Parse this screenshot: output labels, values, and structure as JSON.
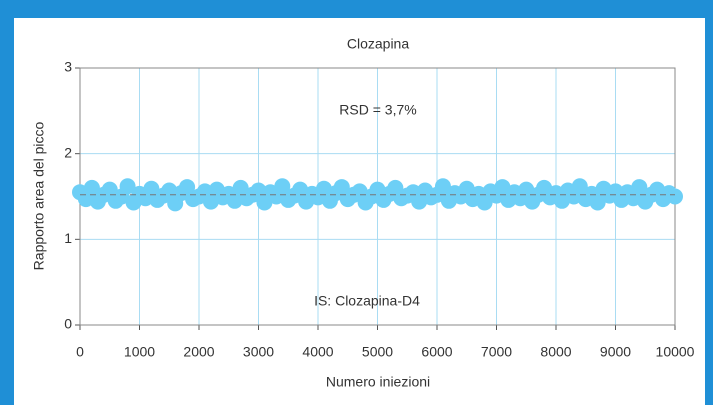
{
  "chart_data": {
    "type": "scatter",
    "title": "Clozapina",
    "xlabel": "Numero iniezioni",
    "ylabel": "Rapporto area del picco",
    "annotations": [
      "RSD = 3,7%",
      "IS: Clozapina-D4"
    ],
    "reference_line": 1.52,
    "color": "#6dcff6",
    "xlim": [
      0,
      10000
    ],
    "xticks": [
      0,
      1000,
      2000,
      3000,
      4000,
      5000,
      6000,
      7000,
      8000,
      9000,
      10000
    ],
    "ylim": [
      0,
      3
    ],
    "yticks": [
      0,
      1,
      2,
      3
    ],
    "grid": true,
    "x": [
      0,
      100,
      200,
      300,
      400,
      500,
      600,
      700,
      800,
      900,
      1000,
      1100,
      1200,
      1300,
      1400,
      1500,
      1600,
      1700,
      1800,
      1900,
      2000,
      2100,
      2200,
      2300,
      2400,
      2500,
      2600,
      2700,
      2800,
      2900,
      3000,
      3100,
      3200,
      3300,
      3400,
      3500,
      3600,
      3700,
      3800,
      3900,
      4000,
      4100,
      4200,
      4300,
      4400,
      4500,
      4600,
      4700,
      4800,
      4900,
      5000,
      5100,
      5200,
      5300,
      5400,
      5500,
      5600,
      5700,
      5800,
      5900,
      6000,
      6100,
      6200,
      6300,
      6400,
      6500,
      6600,
      6700,
      6800,
      6900,
      7000,
      7100,
      7200,
      7300,
      7400,
      7500,
      7600,
      7700,
      7800,
      7900,
      8000,
      8100,
      8200,
      8300,
      8400,
      8500,
      8600,
      8700,
      8800,
      8900,
      9000,
      9100,
      9200,
      9300,
      9400,
      9500,
      9600,
      9700,
      9800,
      9900,
      10000
    ],
    "values": [
      1.55,
      1.47,
      1.6,
      1.44,
      1.52,
      1.58,
      1.45,
      1.5,
      1.62,
      1.43,
      1.53,
      1.48,
      1.59,
      1.46,
      1.51,
      1.57,
      1.42,
      1.54,
      1.61,
      1.47,
      1.5,
      1.56,
      1.44,
      1.58,
      1.49,
      1.53,
      1.45,
      1.6,
      1.48,
      1.52,
      1.57,
      1.43,
      1.55,
      1.5,
      1.62,
      1.46,
      1.51,
      1.58,
      1.44,
      1.53,
      1.49,
      1.59,
      1.45,
      1.54,
      1.61,
      1.47,
      1.52,
      1.56,
      1.43,
      1.5,
      1.58,
      1.46,
      1.53,
      1.6,
      1.48,
      1.51,
      1.55,
      1.44,
      1.57,
      1.49,
      1.52,
      1.62,
      1.45,
      1.54,
      1.5,
      1.59,
      1.47,
      1.53,
      1.43,
      1.56,
      1.51,
      1.61,
      1.46,
      1.55,
      1.48,
      1.58,
      1.44,
      1.52,
      1.6,
      1.49,
      1.54,
      1.45,
      1.57,
      1.5,
      1.62,
      1.47,
      1.53,
      1.43,
      1.59,
      1.51,
      1.56,
      1.46,
      1.55,
      1.48,
      1.61,
      1.44,
      1.52,
      1.58,
      1.47,
      1.54,
      1.5
    ]
  }
}
